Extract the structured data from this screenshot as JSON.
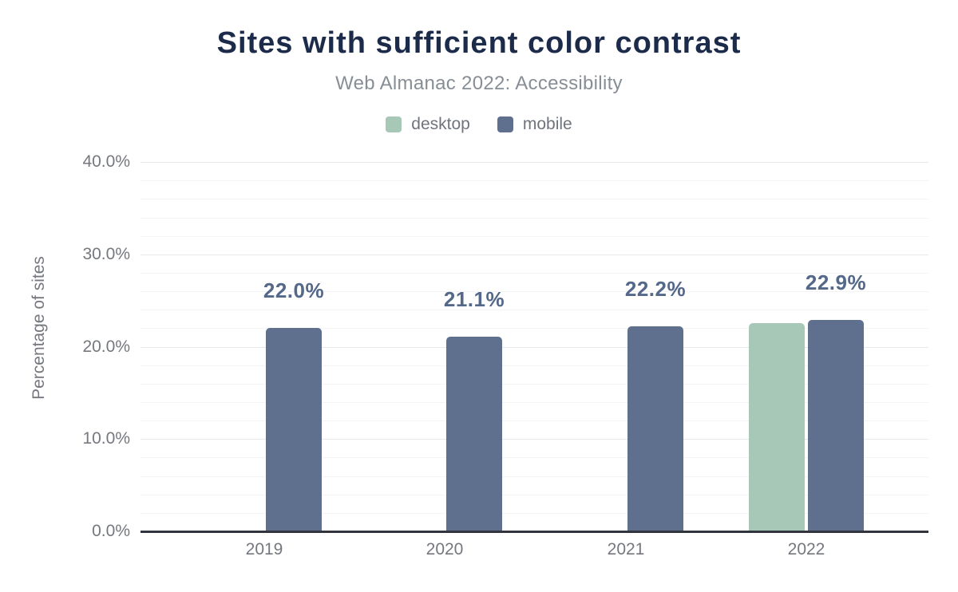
{
  "colors": {
    "title": "#1c2b4a",
    "subtitle": "#888e96",
    "legend_text": "#6f747c",
    "axis_text": "#75787e",
    "data_label": "#546889",
    "baseline": "#31343c",
    "grid_major": "#e6e8eb",
    "grid_minor": "#f4f4f6",
    "desktop": "#a7c8b7",
    "mobile": "#5e708e"
  },
  "chart_data": {
    "type": "bar",
    "title": "Sites with sufficient color contrast",
    "subtitle": "Web Almanac 2022: Accessibility",
    "ylabel": "Percentage of sites",
    "categories": [
      "2019",
      "2020",
      "2021",
      "2022"
    ],
    "series": [
      {
        "name": "desktop",
        "color": "#a7c8b7",
        "values": [
          null,
          null,
          null,
          22.6
        ],
        "labels": [
          null,
          null,
          null,
          null
        ]
      },
      {
        "name": "mobile",
        "color": "#5e708e",
        "values": [
          22.0,
          21.1,
          22.2,
          22.9
        ],
        "labels": [
          "22.0%",
          "21.1%",
          "22.2%",
          "22.9%"
        ]
      }
    ],
    "ylim": [
      0,
      40
    ],
    "y_major_step": 10,
    "y_minor_step": 2,
    "y_tick_labels": [
      "0.0%",
      "10.0%",
      "20.0%",
      "30.0%",
      "40.0%"
    ],
    "legend_position": "top",
    "grid": "horizontal"
  }
}
